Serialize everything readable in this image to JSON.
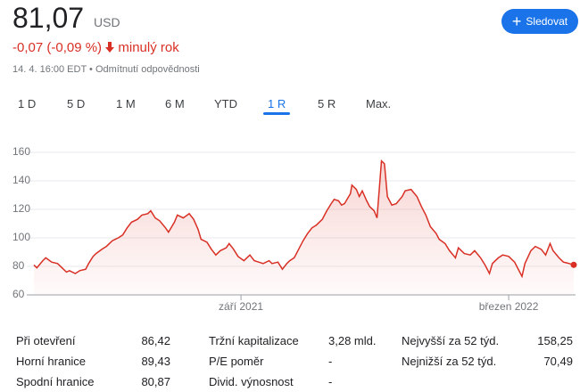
{
  "header": {
    "price": "81,07",
    "currency": "USD",
    "change": "-0,07 (-0,09 %)",
    "period": "minulý rok",
    "timestamp": "14. 4. 16:00 EDT",
    "disclaimer": "Odmítnutí odpovědnosti",
    "follow": "Sledovat"
  },
  "tabs": {
    "items": [
      "1 D",
      "5 D",
      "1 M",
      "6 M",
      "YTD",
      "1 R",
      "5 R",
      "Max."
    ],
    "active": 5
  },
  "chart_data": {
    "type": "line",
    "x": [
      0,
      2,
      6,
      8,
      12,
      16,
      19,
      22,
      24,
      28,
      31,
      35,
      37,
      40,
      42,
      46,
      49,
      53,
      57,
      60,
      63,
      66,
      70,
      73,
      77,
      79,
      82,
      85,
      89,
      91,
      95,
      97,
      101,
      105,
      108,
      111,
      113,
      117,
      120,
      123,
      126,
      130,
      132,
      135,
      138,
      142,
      146,
      149,
      152,
      155,
      159,
      161,
      165,
      168,
      171,
      173,
      176,
      179,
      182,
      185,
      188,
      191,
      195,
      198,
      201,
      203,
      206,
      208,
      210,
      214,
      215,
      218,
      220,
      222,
      225,
      227,
      230,
      232,
      235,
      237,
      239,
      242,
      245,
      249,
      251,
      255,
      259,
      262,
      265,
      268,
      272,
      274,
      278,
      281,
      285,
      287,
      291,
      295,
      298,
      302,
      305,
      308,
      310,
      314,
      317,
      321,
      325,
      327,
      330,
      332,
      336,
      339,
      343,
      346,
      349,
      351,
      355,
      358,
      362,
      365
    ],
    "series": [
      {
        "color": "#d93025",
        "values": [
          81,
          79,
          84,
          86,
          83,
          82,
          79,
          76,
          77,
          75,
          77,
          78,
          82,
          87,
          89,
          92,
          94,
          98,
          100,
          102,
          107,
          111,
          113,
          116,
          117,
          119,
          114,
          112,
          107,
          104,
          111,
          116,
          114,
          117,
          113,
          106,
          99,
          97,
          92,
          88,
          91,
          93,
          96,
          92,
          87,
          84,
          88,
          84,
          83,
          82,
          84,
          82,
          83,
          78,
          82,
          84,
          86,
          92,
          98,
          103,
          107,
          109,
          113,
          119,
          124,
          127,
          126,
          123,
          124,
          131,
          137,
          134,
          129,
          133,
          126,
          122,
          119,
          114,
          154,
          152,
          129,
          123,
          124,
          129,
          133,
          134,
          129,
          122,
          116,
          108,
          103,
          99,
          96,
          91,
          86,
          93,
          89,
          88,
          91,
          86,
          81,
          75,
          82,
          86,
          88,
          87,
          83,
          79,
          73,
          82,
          91,
          94,
          92,
          88,
          96,
          91,
          86,
          83,
          82,
          81.07
        ]
      }
    ],
    "xlim": [
      0,
      365
    ],
    "ylim": [
      60,
      160
    ],
    "yticks": [
      60,
      80,
      100,
      120,
      140,
      160
    ],
    "xticks": [
      {
        "value": 140,
        "label": "září 2021"
      },
      {
        "value": 321,
        "label": "březen 2022"
      }
    ],
    "grid": true
  },
  "stats": {
    "rows": [
      [
        "Při otevření",
        "86,42",
        "Tržní kapitalizace",
        "3,28 mld.",
        "Nejvyšší za 52 týd.",
        "158,25"
      ],
      [
        "Horní hranice",
        "89,43",
        "P/E poměr",
        "-",
        "Nejnižší za 52 týd.",
        "70,49"
      ],
      [
        "Spodní hranice",
        "80,87",
        "Divid. výnosnost",
        "-"
      ]
    ]
  }
}
